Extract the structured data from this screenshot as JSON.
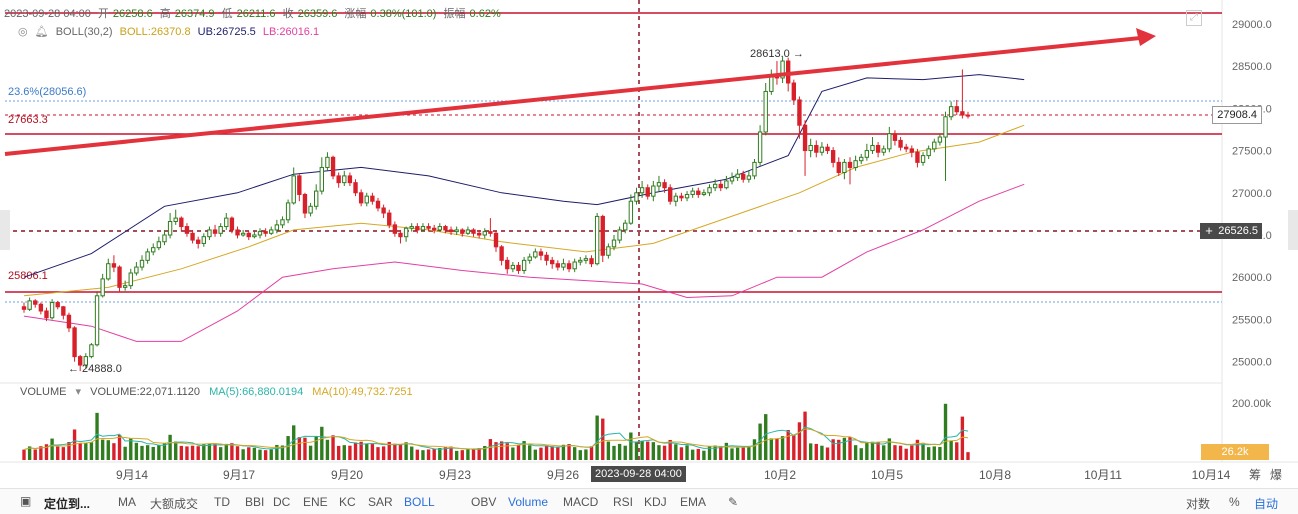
{
  "header": {
    "date": "2023-09-28 04:00",
    "open_label": "开",
    "open": "26258.6",
    "high_label": "高",
    "high": "26374.9",
    "low_label": "低",
    "low": "26211.6",
    "close_label": "收",
    "close": "26359.6",
    "change_label": "涨幅",
    "change": "0.38%(101.0)",
    "amp_label": "振幅",
    "amp": "0.62%"
  },
  "boll": {
    "name": "BOLL(30,2)",
    "mid": "BOLL:26370.8",
    "ub": "UB:26725.5",
    "lb": "LB:26016.1"
  },
  "volume_legend": {
    "name": "VOLUME",
    "value": "VOLUME:22,071.1120",
    "ma5": "MA(5):66,880.0194",
    "ma10": "MA(10):49,732.7251"
  },
  "annotations": {
    "fib_label": "23.6%(28056.6)",
    "level_27663": "27663.3",
    "level_25806": "25806.1",
    "high_marker": "28613.0 →",
    "low_marker": "← 24888.0",
    "crosshair_time": "2023-09-28 04:00",
    "crosshair_price": "26526.5",
    "last_price": "27908.4",
    "vol_last": "26.2k"
  },
  "y_ticks": [
    "29000.0",
    "28500.0",
    "28000.0",
    "27500.0",
    "27000.0",
    "26500.0",
    "26000.0",
    "25500.0",
    "25000.0"
  ],
  "vol_ticks": [
    "200.00k"
  ],
  "x_ticks": [
    "9月14",
    "9月17",
    "9月20",
    "9月23",
    "9月26",
    "10月2",
    "10月5",
    "10月8",
    "10月11",
    "10月14"
  ],
  "toolbar": {
    "locate": "定位到...",
    "items": [
      "MA",
      "大额成交",
      "TD",
      "BBI",
      "DC",
      "ENE",
      "KC",
      "SAR",
      "BOLL",
      "OBV",
      "Volume",
      "MACD",
      "RSI",
      "KDJ",
      "EMA"
    ],
    "active": [
      "BOLL",
      "Volume"
    ],
    "right": [
      "对数",
      "%",
      "自动"
    ],
    "corner": [
      "筹",
      "爆"
    ]
  },
  "colors": {
    "up": "#2f7d1f",
    "down": "#d8202b",
    "mid": "#d5a825",
    "ub": "#1d1d6b",
    "lb": "#e23fa3",
    "ma5": "#2bb5a8",
    "ma10": "#d5a825",
    "trend": "#e2323c",
    "level": "#c8102e",
    "accent": "#2a6fdb"
  },
  "chart_data": {
    "type": "candlestick",
    "price_ylim": [
      24700,
      29200
    ],
    "x_range": [
      "2023-09-11",
      "2023-10-14"
    ],
    "candles": [
      [
        25650,
        25620,
        25700,
        25580
      ],
      [
        25620,
        25720,
        25760,
        25600
      ],
      [
        25720,
        25680,
        25740,
        25640
      ],
      [
        25680,
        25600,
        25700,
        25560
      ],
      [
        25600,
        25520,
        25640,
        25480
      ],
      [
        25520,
        25700,
        25740,
        25500
      ],
      [
        25700,
        25650,
        25720,
        25620
      ],
      [
        25650,
        25550,
        25660,
        25500
      ],
      [
        25550,
        25400,
        25580,
        25350
      ],
      [
        25400,
        25060,
        25420,
        25000
      ],
      [
        25060,
        24960,
        25080,
        24888
      ],
      [
        24960,
        25060,
        25100,
        24920
      ],
      [
        25060,
        25200,
        25220,
        25040
      ],
      [
        25200,
        25780,
        25820,
        25180
      ],
      [
        25780,
        25980,
        26040,
        25760
      ],
      [
        25980,
        26160,
        26220,
        25960
      ],
      [
        26160,
        26120,
        26260,
        26060
      ],
      [
        26120,
        25880,
        26140,
        25820
      ],
      [
        25880,
        25900,
        25960,
        25840
      ],
      [
        25900,
        26050,
        26100,
        25860
      ],
      [
        26050,
        26120,
        26180,
        26020
      ],
      [
        26120,
        26200,
        26260,
        26080
      ],
      [
        26200,
        26300,
        26340,
        26160
      ],
      [
        26300,
        26350,
        26400,
        26260
      ],
      [
        26350,
        26420,
        26480,
        26320
      ],
      [
        26420,
        26500,
        26560,
        26380
      ],
      [
        26500,
        26660,
        26760,
        26460
      ],
      [
        26660,
        26700,
        26800,
        26620
      ],
      [
        26700,
        26600,
        26720,
        26540
      ],
      [
        26600,
        26520,
        26640,
        26480
      ],
      [
        26520,
        26440,
        26560,
        26400
      ],
      [
        26440,
        26400,
        26480,
        26340
      ],
      [
        26400,
        26480,
        26520,
        26360
      ],
      [
        26480,
        26560,
        26600,
        26440
      ],
      [
        26560,
        26520,
        26620,
        26480
      ],
      [
        26520,
        26600,
        26640,
        26480
      ],
      [
        26600,
        26700,
        26760,
        26560
      ],
      [
        26700,
        26560,
        26720,
        26520
      ],
      [
        26560,
        26500,
        26600,
        26460
      ],
      [
        26500,
        26520,
        26560,
        26480
      ],
      [
        26520,
        26480,
        26540,
        26440
      ],
      [
        26480,
        26500,
        26540,
        26460
      ],
      [
        26500,
        26540,
        26580,
        26460
      ],
      [
        26540,
        26520,
        26580,
        26480
      ],
      [
        26520,
        26560,
        26600,
        26500
      ],
      [
        26560,
        26620,
        26680,
        26520
      ],
      [
        26620,
        26680,
        26720,
        26580
      ],
      [
        26680,
        26880,
        26920,
        26640
      ],
      [
        26880,
        27200,
        27300,
        26860
      ],
      [
        27200,
        26980,
        27220,
        26900
      ],
      [
        26980,
        26760,
        27000,
        26700
      ],
      [
        26760,
        26840,
        26880,
        26720
      ],
      [
        26840,
        27020,
        27100,
        26800
      ],
      [
        27020,
        27300,
        27420,
        26980
      ],
      [
        27300,
        27420,
        27480,
        27260
      ],
      [
        27420,
        27200,
        27440,
        27160
      ],
      [
        27200,
        27120,
        27240,
        27060
      ],
      [
        27120,
        27200,
        27260,
        27080
      ],
      [
        27200,
        27120,
        27240,
        27080
      ],
      [
        27120,
        27000,
        27160,
        26960
      ],
      [
        27000,
        26880,
        27040,
        26840
      ],
      [
        26880,
        26960,
        27000,
        26840
      ],
      [
        26960,
        26900,
        27000,
        26860
      ],
      [
        26900,
        26820,
        26940,
        26780
      ],
      [
        26820,
        26760,
        26860,
        26700
      ],
      [
        26760,
        26620,
        26800,
        26580
      ],
      [
        26620,
        26520,
        26660,
        26480
      ],
      [
        26520,
        26480,
        26560,
        26400
      ],
      [
        26480,
        26580,
        26600,
        26420
      ],
      [
        26580,
        26600,
        26640,
        26540
      ],
      [
        26600,
        26560,
        26640,
        26520
      ],
      [
        26560,
        26600,
        26640,
        26540
      ],
      [
        26600,
        26580,
        26640,
        26540
      ],
      [
        26580,
        26560,
        26620,
        26520
      ],
      [
        26560,
        26600,
        26640,
        26540
      ],
      [
        26600,
        26560,
        26620,
        26520
      ],
      [
        26560,
        26540,
        26600,
        26500
      ],
      [
        26540,
        26560,
        26600,
        26500
      ],
      [
        26560,
        26520,
        26580,
        26480
      ],
      [
        26520,
        26560,
        26600,
        26500
      ],
      [
        26560,
        26520,
        26580,
        26480
      ],
      [
        26520,
        26500,
        26560,
        26460
      ],
      [
        26500,
        26540,
        26580,
        26460
      ],
      [
        26540,
        26520,
        26700,
        26480
      ],
      [
        26520,
        26360,
        26540,
        26300
      ],
      [
        26360,
        26200,
        26380,
        26140
      ],
      [
        26200,
        26100,
        26240,
        26040
      ],
      [
        26100,
        26140,
        26180,
        26060
      ],
      [
        26140,
        26080,
        26180,
        26040
      ],
      [
        26080,
        26200,
        26240,
        26040
      ],
      [
        26200,
        26240,
        26280,
        26160
      ],
      [
        26240,
        26300,
        26340,
        26220
      ],
      [
        26300,
        26260,
        26340,
        26200
      ],
      [
        26260,
        26200,
        26300,
        26140
      ],
      [
        26200,
        26160,
        26240,
        26100
      ],
      [
        26160,
        26120,
        26200,
        26080
      ],
      [
        26120,
        26160,
        26220,
        26080
      ],
      [
        26160,
        26100,
        26200,
        26060
      ],
      [
        26100,
        26180,
        26220,
        26060
      ],
      [
        26180,
        26200,
        26240,
        26140
      ],
      [
        26200,
        26220,
        26260,
        26160
      ],
      [
        26220,
        26160,
        26260,
        26120
      ],
      [
        26160,
        26720,
        26760,
        26140
      ],
      [
        26720,
        26260,
        26740,
        26180
      ],
      [
        26260,
        26360,
        26400,
        26220
      ],
      [
        26360,
        26440,
        26500,
        26320
      ],
      [
        26440,
        26560,
        26600,
        26400
      ],
      [
        26560,
        26640,
        26680,
        26520
      ],
      [
        26640,
        26900,
        26980,
        26620
      ],
      [
        26900,
        27000,
        27060,
        26860
      ],
      [
        27000,
        27060,
        27140,
        26940
      ],
      [
        27060,
        26960,
        27100,
        26920
      ],
      [
        26960,
        27080,
        27140,
        26900
      ],
      [
        27080,
        27120,
        27200,
        27020
      ],
      [
        27120,
        27060,
        27160,
        27000
      ],
      [
        27060,
        26900,
        27100,
        26860
      ],
      [
        26900,
        26960,
        27000,
        26840
      ],
      [
        26960,
        26940,
        27000,
        26900
      ],
      [
        26940,
        26980,
        27020,
        26900
      ],
      [
        26980,
        27020,
        27060,
        26940
      ],
      [
        27020,
        26980,
        27060,
        26940
      ],
      [
        26980,
        27000,
        27040,
        26960
      ],
      [
        27000,
        27060,
        27100,
        26960
      ],
      [
        27060,
        27100,
        27160,
        27020
      ],
      [
        27100,
        27060,
        27140,
        27020
      ],
      [
        27060,
        27140,
        27200,
        27040
      ],
      [
        27140,
        27180,
        27240,
        27100
      ],
      [
        27180,
        27220,
        27280,
        27140
      ],
      [
        27220,
        27160,
        27260,
        27120
      ],
      [
        27160,
        27200,
        27260,
        27120
      ],
      [
        27200,
        27360,
        27400,
        27160
      ],
      [
        27360,
        27720,
        27800,
        27320
      ],
      [
        27720,
        28200,
        28300,
        27680
      ],
      [
        28200,
        28380,
        28460,
        28160
      ],
      [
        28380,
        28360,
        28560,
        28280
      ],
      [
        28360,
        28560,
        28613,
        28300
      ],
      [
        28560,
        28300,
        28600,
        28200
      ],
      [
        28300,
        28100,
        28340,
        28040
      ],
      [
        28100,
        27800,
        28140,
        27640
      ],
      [
        27800,
        27500,
        27860,
        27200
      ],
      [
        27500,
        27560,
        27640,
        27420
      ],
      [
        27560,
        27480,
        27620,
        27420
      ],
      [
        27480,
        27540,
        27600,
        27440
      ],
      [
        27540,
        27500,
        27580,
        27460
      ],
      [
        27500,
        27360,
        27540,
        27300
      ],
      [
        27360,
        27240,
        27420,
        27200
      ],
      [
        27240,
        27360,
        27400,
        27160
      ],
      [
        27360,
        27300,
        27420,
        27100
      ],
      [
        27300,
        27380,
        27440,
        27260
      ],
      [
        27380,
        27420,
        27460,
        27340
      ],
      [
        27420,
        27500,
        27580,
        27380
      ],
      [
        27500,
        27560,
        27660,
        27460
      ],
      [
        27560,
        27480,
        27600,
        27420
      ],
      [
        27480,
        27520,
        27560,
        27440
      ],
      [
        27520,
        27700,
        27780,
        27480
      ],
      [
        27700,
        27620,
        27740,
        27560
      ],
      [
        27620,
        27540,
        27660,
        27500
      ],
      [
        27540,
        27520,
        27580,
        27480
      ],
      [
        27520,
        27480,
        27560,
        27420
      ],
      [
        27480,
        27360,
        27520,
        27300
      ],
      [
        27360,
        27440,
        27480,
        27320
      ],
      [
        27440,
        27520,
        27560,
        27400
      ],
      [
        27520,
        27600,
        27640,
        27480
      ],
      [
        27600,
        27660,
        27700,
        27560
      ],
      [
        27660,
        27900,
        27960,
        27140
      ],
      [
        27900,
        28020,
        28080,
        27860
      ],
      [
        28020,
        27960,
        28100,
        27920
      ],
      [
        27960,
        27920,
        28460,
        27880
      ],
      [
        27920,
        27908,
        27960,
        27880
      ]
    ],
    "boll_mid_keypoints": [
      [
        0,
        25780
      ],
      [
        15,
        25880
      ],
      [
        28,
        26100
      ],
      [
        40,
        26360
      ],
      [
        48,
        26560
      ],
      [
        60,
        26640
      ],
      [
        72,
        26560
      ],
      [
        85,
        26420
      ],
      [
        100,
        26300
      ],
      [
        112,
        26400
      ],
      [
        125,
        26700
      ],
      [
        138,
        27000
      ],
      [
        148,
        27300
      ],
      [
        158,
        27480
      ],
      [
        170,
        27600
      ],
      [
        178,
        27800
      ]
    ],
    "boll_ub_keypoints": [
      [
        0,
        26000
      ],
      [
        12,
        26280
      ],
      [
        25,
        26840
      ],
      [
        38,
        27000
      ],
      [
        48,
        27220
      ],
      [
        60,
        27300
      ],
      [
        72,
        27200
      ],
      [
        85,
        27000
      ],
      [
        96,
        26900
      ],
      [
        102,
        26860
      ],
      [
        112,
        27000
      ],
      [
        125,
        27160
      ],
      [
        136,
        27440
      ],
      [
        142,
        28200
      ],
      [
        150,
        28360
      ],
      [
        160,
        28340
      ],
      [
        170,
        28400
      ],
      [
        178,
        28340
      ]
    ],
    "boll_lb_keypoints": [
      [
        0,
        25540
      ],
      [
        12,
        25420
      ],
      [
        20,
        25240
      ],
      [
        28,
        25240
      ],
      [
        38,
        25600
      ],
      [
        46,
        26000
      ],
      [
        55,
        26100
      ],
      [
        66,
        26180
      ],
      [
        78,
        26080
      ],
      [
        90,
        26000
      ],
      [
        100,
        25960
      ],
      [
        110,
        25920
      ],
      [
        118,
        25760
      ],
      [
        126,
        25780
      ],
      [
        134,
        26000
      ],
      [
        142,
        26000
      ],
      [
        150,
        26300
      ],
      [
        160,
        26560
      ],
      [
        170,
        26900
      ],
      [
        178,
        27100
      ]
    ],
    "volume_ylim": [
      0,
      250000
    ],
    "volume_up_hint": "green = up, red = down"
  }
}
